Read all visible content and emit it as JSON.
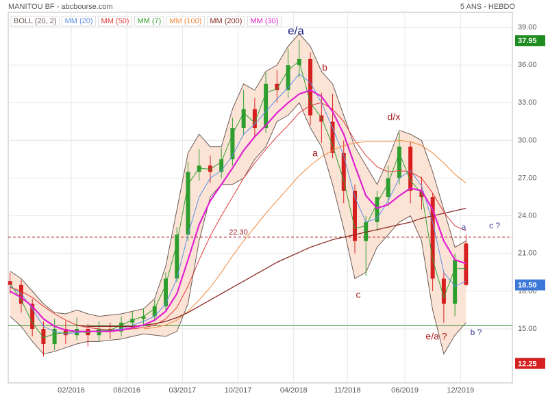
{
  "chart_data": {
    "type": "candlestick",
    "title": "MANITOU BF - abcbourse.com",
    "subtitle": "5 ANS - HEBDO",
    "x": [
      0,
      6,
      12,
      18,
      24,
      30,
      36,
      42,
      48,
      54,
      60,
      66,
      72,
      78,
      84,
      90,
      96,
      102,
      108,
      114,
      120,
      126,
      132,
      138,
      144,
      150,
      156,
      162,
      168,
      174,
      180,
      186,
      192,
      198,
      204,
      210,
      216,
      222,
      228,
      234,
      240,
      246
    ],
    "open": [
      18.8,
      18.5,
      17,
      15,
      13.8,
      15,
      14.5,
      15,
      14.5,
      15,
      14.8,
      15.5,
      15.8,
      16,
      16.8,
      19,
      22.5,
      27.5,
      28,
      27.5,
      28.5,
      31,
      32.5,
      31,
      34.5,
      34,
      36,
      36.5,
      32,
      31.5,
      29,
      26,
      22,
      23.5,
      25.5,
      27,
      29.5,
      26,
      25.5,
      19,
      17,
      21.8
    ],
    "high": [
      19.5,
      18.9,
      17.4,
      15.6,
      15.8,
      15.6,
      15.9,
      15.4,
      15.6,
      15.5,
      16.0,
      16.4,
      16.6,
      17.3,
      19.5,
      23.1,
      28.3,
      29.3,
      28.8,
      29.4,
      31.8,
      34.0,
      33.4,
      35.4,
      35.6,
      37.3,
      38.0,
      37.0,
      33.8,
      33.7,
      30.0,
      26.5,
      24.0,
      26.0,
      28.0,
      30.6,
      29.9,
      27.1,
      25.8,
      19.6,
      21.0,
      22.5
    ],
    "low": [
      17.8,
      16.3,
      14.4,
      12.8,
      13.3,
      13.8,
      14.1,
      13.6,
      14.0,
      14.2,
      14.4,
      15.0,
      15.2,
      15.6,
      16.5,
      18.7,
      22.0,
      26.8,
      26.6,
      27.0,
      28.0,
      30.4,
      30.2,
      30.6,
      33.0,
      33.4,
      35.0,
      31.2,
      29.8,
      28.6,
      25.0,
      21.0,
      19.2,
      22.8,
      24.8,
      26.5,
      25.0,
      24.5,
      18.0,
      15.5,
      16.0,
      18.4
    ],
    "close": [
      18.5,
      17,
      15,
      13.8,
      15,
      14.5,
      15,
      14.5,
      15,
      14.8,
      15.5,
      15.8,
      16,
      16.8,
      19,
      22.5,
      27.5,
      28,
      27.5,
      28.5,
      31,
      32.5,
      31,
      34.5,
      34,
      36,
      36.5,
      32,
      31.5,
      29,
      26,
      22,
      23.5,
      25.5,
      27,
      29.5,
      26,
      25.5,
      19,
      17,
      20.5,
      18.5
    ],
    "up_color": "#2e9e2e",
    "down_color": "#d62020",
    "bollinger": {
      "name": "BOLL (20, 2)",
      "color": "#6b5a55",
      "fill": "#fbe4d6",
      "upper": [
        19.6,
        19.0,
        18.0,
        17.0,
        16.3,
        16.2,
        16.5,
        16.2,
        16.0,
        16.1,
        16.2,
        16.4,
        16.6,
        17.4,
        20.0,
        24.5,
        29.0,
        30.5,
        29.5,
        29.5,
        32.5,
        34.5,
        34.0,
        35.5,
        36.0,
        37.5,
        38.5,
        37.5,
        35.5,
        34.5,
        32.0,
        29.5,
        28.0,
        26.5,
        28.5,
        30.8,
        30.5,
        30.0,
        27.5,
        24.5,
        21.5,
        22.0
      ],
      "lower": [
        16.0,
        15.2,
        14.0,
        13.0,
        13.2,
        13.5,
        13.8,
        14.0,
        14.0,
        14.1,
        14.2,
        14.4,
        14.6,
        14.5,
        14.4,
        14.8,
        17.0,
        22.0,
        25.5,
        26.5,
        26.5,
        27.0,
        28.5,
        29.5,
        31.5,
        32.0,
        33.0,
        31.0,
        29.5,
        26.5,
        23.0,
        19.0,
        19.5,
        21.5,
        22.5,
        23.5,
        24.0,
        22.0,
        16.5,
        13.0,
        14.5,
        15.5
      ]
    },
    "series": [
      {
        "name": "MM (20)",
        "color": "#5b8ee6",
        "width": 1,
        "values": [
          18.4,
          17.8,
          16.6,
          15.2,
          14.8,
          14.6,
          14.7,
          14.8,
          14.8,
          14.9,
          15.0,
          15.3,
          15.6,
          16.0,
          17.0,
          19.0,
          22.5,
          25.5,
          27.0,
          27.6,
          28.8,
          30.5,
          31.3,
          32.3,
          33.3,
          34.2,
          35.3,
          34.6,
          33.0,
          31.0,
          28.8,
          25.5,
          23.5,
          23.8,
          25.2,
          27.0,
          27.6,
          26.4,
          23.5,
          19.5,
          18.4,
          18.8
        ]
      },
      {
        "name": "MM (50)",
        "color": "#e03a3a",
        "width": 1,
        "values": [
          18.3,
          18.0,
          17.5,
          16.8,
          16.2,
          15.7,
          15.3,
          15.1,
          15.0,
          14.9,
          14.9,
          15.0,
          15.1,
          15.3,
          15.8,
          16.7,
          18.4,
          20.5,
          22.4,
          24.0,
          25.5,
          27.0,
          28.2,
          29.3,
          30.3,
          31.2,
          32.2,
          32.8,
          33.0,
          32.5,
          31.5,
          30.0,
          28.8,
          27.9,
          27.5,
          27.6,
          27.5,
          27.0,
          25.8,
          24.3,
          23.2,
          22.8
        ]
      },
      {
        "name": "MM (7)",
        "color": "#2e9e2e",
        "width": 1,
        "values": [
          18.6,
          17.3,
          15.5,
          14.3,
          14.6,
          14.7,
          14.8,
          14.7,
          14.9,
          14.9,
          15.3,
          15.7,
          16.0,
          16.6,
          18.5,
          21.8,
          26.5,
          27.8,
          27.7,
          28.3,
          30.5,
          32.2,
          31.4,
          33.8,
          34.1,
          35.6,
          36.3,
          33.0,
          31.8,
          29.6,
          26.8,
          23.0,
          23.2,
          25.0,
          26.6,
          29.0,
          26.8,
          25.8,
          20.5,
          17.5,
          19.8,
          19.8
        ]
      },
      {
        "name": "MM (100)",
        "color": "#f0883a",
        "width": 1,
        "values": [
          null,
          null,
          null,
          null,
          null,
          null,
          null,
          null,
          null,
          null,
          null,
          null,
          15.0,
          15.1,
          15.3,
          15.7,
          16.4,
          17.3,
          18.3,
          19.5,
          20.8,
          22.0,
          23.1,
          24.2,
          25.2,
          26.2,
          27.2,
          28.0,
          28.7,
          29.2,
          29.6,
          29.8,
          29.9,
          29.9,
          29.9,
          30.0,
          29.9,
          29.6,
          29.0,
          28.2,
          27.3,
          26.6
        ]
      },
      {
        "name": "MM (200)",
        "color": "#8a2a22",
        "width": 1.3,
        "values": [
          null,
          null,
          null,
          null,
          null,
          null,
          15.3,
          15.2,
          15.2,
          15.2,
          15.2,
          15.2,
          15.3,
          15.4,
          15.6,
          15.9,
          16.3,
          16.8,
          17.3,
          17.8,
          18.3,
          18.8,
          19.3,
          19.8,
          20.3,
          20.7,
          21.1,
          21.5,
          21.8,
          22.1,
          22.3,
          22.5,
          22.7,
          22.9,
          23.1,
          23.3,
          23.5,
          23.8,
          24.0,
          24.2,
          24.4,
          24.6
        ]
      },
      {
        "name": "MM (30)",
        "color": "#e020d0",
        "width": 2.2,
        "values": [
          18.0,
          17.5,
          16.8,
          15.8,
          15.2,
          14.9,
          14.8,
          14.8,
          14.8,
          14.8,
          14.9,
          15.1,
          15.3,
          15.7,
          16.4,
          17.8,
          20.5,
          23.3,
          25.2,
          26.5,
          27.8,
          29.2,
          30.3,
          31.2,
          32.2,
          33.0,
          33.7,
          34.0,
          33.5,
          32.3,
          30.5,
          28.0,
          25.6,
          24.6,
          24.9,
          25.6,
          26.2,
          26.0,
          24.5,
          22.0,
          20.5,
          20.2
        ]
      }
    ],
    "xlim": [
      -1,
      271
    ],
    "ylim": [
      10.7,
      40.2
    ],
    "xticks": [
      {
        "value": 33,
        "label": "02/2016"
      },
      {
        "value": 63,
        "label": "08/2016"
      },
      {
        "value": 93,
        "label": "03/2017"
      },
      {
        "value": 123,
        "label": "10/2017"
      },
      {
        "value": 153,
        "label": "04/2018"
      },
      {
        "value": 182,
        "label": "11/2018"
      },
      {
        "value": 213,
        "label": "06/2019"
      },
      {
        "value": 243,
        "label": "12/2019"
      }
    ],
    "yticks": [
      {
        "value": 15,
        "label": "15.00"
      },
      {
        "value": 18,
        "label": "18.00"
      },
      {
        "value": 21,
        "label": "21.00"
      },
      {
        "value": 24,
        "label": "24.00"
      },
      {
        "value": 27,
        "label": "27.00"
      },
      {
        "value": 30,
        "label": "30.00"
      },
      {
        "value": 33,
        "label": "33.00"
      },
      {
        "value": 36,
        "label": "36.00"
      },
      {
        "value": 39,
        "label": "39.00"
      }
    ],
    "grid": true,
    "reference_lines": [
      {
        "value": 22.3,
        "label": "22.30",
        "color": "#a01818",
        "dashed": true
      },
      {
        "value": 15.25,
        "color": "#2e8b2e",
        "dashed": false
      }
    ],
    "price_tags": [
      {
        "value": 37.95,
        "label": "37.95",
        "color": "#1e8c1e"
      },
      {
        "value": 18.5,
        "label": "18.50",
        "color": "#3d78d8"
      },
      {
        "value": 12.25,
        "label": "12.25",
        "color": "#d42020"
      }
    ],
    "annotations": [
      {
        "text": "e/a",
        "color": "#1a237e"
      },
      {
        "text": "b",
        "color": "#b01818"
      },
      {
        "text": "a",
        "color": "#a01818"
      },
      {
        "text": "c",
        "color": "#a01818"
      },
      {
        "text": "d/x",
        "color": "#a01818"
      },
      {
        "text": "a",
        "color": "#4848a8"
      },
      {
        "text": "c ?",
        "color": "#3a3a98"
      },
      {
        "text": "b ?",
        "color": "#3a3a98"
      },
      {
        "text": "e/a ?",
        "color": "#b01818"
      }
    ]
  }
}
